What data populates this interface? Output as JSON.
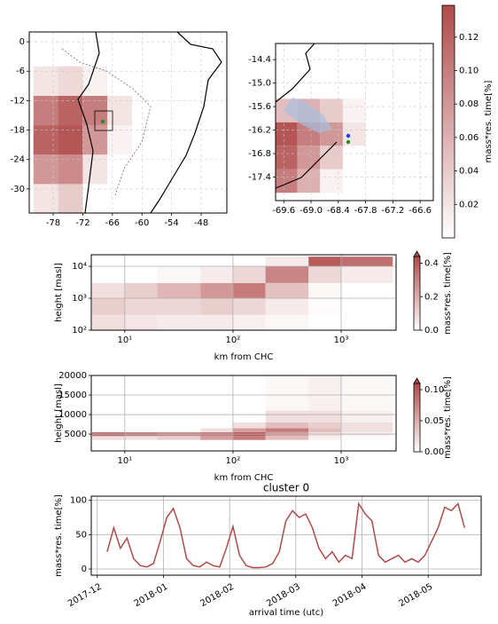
{
  "chart_data": [
    {
      "type": "map_heatmap",
      "color": "#b04a4a",
      "xlim": [
        -82.85,
        -42.8
      ],
      "ylim": [
        -34.9,
        2
      ],
      "xticks": [
        -78,
        -72,
        -66,
        -60,
        -54,
        -48
      ],
      "yticks": [
        0,
        -6,
        -12,
        -18,
        -24,
        -30
      ],
      "x_bins": [
        -82,
        -77,
        -72,
        -67,
        -62
      ],
      "y_bins": [
        -35,
        -29,
        -23,
        -17,
        -11,
        -5
      ],
      "values": [
        [
          0.02,
          0.04,
          0,
          0
        ],
        [
          0.08,
          0.09,
          0.02,
          0
        ],
        [
          0.12,
          0.13,
          0.08,
          0.01
        ],
        [
          0.1,
          0.12,
          0.1,
          0.02
        ],
        [
          0.02,
          0.03,
          0.01,
          0
        ]
      ]
    },
    {
      "type": "map_heatmap",
      "color": "#b04a4a",
      "xlim": [
        -69.78,
        -66.31
      ],
      "ylim": [
        -18.0,
        -13.99
      ],
      "xticks": [
        -69.6,
        {
          "value": -69,
          "label": "-69.0"
        },
        -68.4,
        -67.8,
        -67.2,
        -66.6
      ],
      "yticks": [
        -14.4,
        {
          "value": -15,
          "label": "-15.0"
        },
        -15.6,
        -16.2,
        -16.8,
        -17.4
      ],
      "x_bins": [
        -69.78,
        -69.3,
        -68.8,
        -68.3,
        -67.8
      ],
      "y_bins": [
        -17.8,
        -17.2,
        -16.6,
        -16,
        -15.4,
        -14.8
      ],
      "values": [
        [
          0.1,
          0.06,
          0.01,
          0
        ],
        [
          0.12,
          0.08,
          0.04,
          0
        ],
        [
          0.13,
          0.1,
          0.08,
          0.02
        ],
        [
          0.05,
          0.06,
          0.04,
          0.01
        ],
        [
          0,
          0,
          0,
          0
        ]
      ],
      "colorbar": {
        "label": "mass*res. time[%]",
        "lim": [
          0,
          0.139
        ],
        "ticks": [
          0.02,
          0.04,
          0.06,
          0.08,
          {
            "value": 0.1,
            "label": "0.10"
          },
          0.12
        ]
      }
    },
    {
      "type": "heatmap",
      "color": "#b04a4a",
      "xlog": true,
      "ylog": true,
      "grid": true,
      "xlabel": "km from CHC",
      "ylabel": "height [masl]",
      "xlim": [
        4.9,
        3220
      ],
      "ylim": [
        100,
        23000
      ],
      "xticks": [
        {
          "value": 10,
          "label": "10¹"
        },
        {
          "value": 100,
          "label": "10²"
        },
        {
          "value": 1000,
          "label": "10³"
        }
      ],
      "yticks": [
        {
          "value": 100,
          "label": "10²"
        },
        {
          "value": 1000,
          "label": "10³"
        },
        {
          "value": 10000,
          "label": "10⁴"
        }
      ],
      "x_bins": [
        5,
        10,
        20,
        50,
        100,
        200,
        500,
        1000,
        3000
      ],
      "y_bins": [
        100,
        300,
        1000,
        3000,
        10000,
        20000
      ],
      "values": [
        [
          0.08,
          0.06,
          0.05,
          0.05,
          0.04,
          0.02,
          0,
          0
        ],
        [
          0.12,
          0.1,
          0.1,
          0.12,
          0.1,
          0.05,
          0.01,
          0
        ],
        [
          0.08,
          0.12,
          0.18,
          0.25,
          0.32,
          0.15,
          0.02,
          0
        ],
        [
          0,
          0,
          0.02,
          0.05,
          0.1,
          0.3,
          0.1,
          0.05
        ],
        [
          0,
          0,
          0,
          0,
          0,
          0.05,
          0.4,
          0.35
        ]
      ],
      "colorbar": {
        "label": "mass*res. time[%]",
        "lim": [
          0,
          0.44
        ],
        "ticks": [
          {
            "value": 0,
            "label": "0.0"
          },
          0.2,
          0.4
        ]
      }
    },
    {
      "type": "heatmap",
      "color": "#b04a4a",
      "xlog": true,
      "ylog": false,
      "grid": true,
      "xlabel": "km from CHC",
      "ylabel": "height [masl]",
      "xlim": [
        4.9,
        3220
      ],
      "ylim": [
        700,
        20000
      ],
      "xticks": [
        {
          "value": 10,
          "label": "10¹"
        },
        {
          "value": 100,
          "label": "10²"
        },
        {
          "value": 1000,
          "label": "10³"
        }
      ],
      "yticks": [
        5000,
        10000,
        15000,
        20000
      ],
      "x_bins": [
        5,
        10,
        20,
        50,
        100,
        200,
        500,
        1000,
        3000
      ],
      "y_bins": [
        3500,
        4500,
        5500,
        6500,
        8000,
        11000,
        20000
      ],
      "values": [
        [
          0.02,
          0.02,
          0.03,
          0.06,
          0.08,
          0.04,
          0.01,
          0
        ],
        [
          0.09,
          0.08,
          0.07,
          0.08,
          0.1,
          0.06,
          0.02,
          0.01
        ],
        [
          0,
          0,
          0,
          0.02,
          0.06,
          0.08,
          0.04,
          0.02
        ],
        [
          0,
          0,
          0,
          0,
          0.02,
          0.04,
          0.03,
          0.02
        ],
        [
          0,
          0,
          0,
          0,
          0,
          0.02,
          0.02,
          0.01
        ],
        [
          0,
          0,
          0,
          0,
          0,
          0.005,
          0.01,
          0.005
        ]
      ],
      "colorbar": {
        "label": "mass*res. time[%]",
        "lim": [
          0,
          0.11
        ],
        "ticks": [
          {
            "value": 0,
            "label": "0.00"
          },
          0.05,
          {
            "value": 0.1,
            "label": "0.10"
          }
        ]
      }
    },
    {
      "type": "line",
      "color": "#b04a4a",
      "grid": true,
      "title": "cluster 0",
      "xlabel": "arrival time (utc)",
      "ylabel": "mass*res. time[%]",
      "xlim": [
        -0.09,
        5.8
      ],
      "ylim": [
        -9,
        106
      ],
      "xticks": [
        {
          "value": 0,
          "label": "2017-12"
        },
        {
          "value": 1,
          "label": "2018-01"
        },
        {
          "value": 2,
          "label": "2018-02"
        },
        {
          "value": 3,
          "label": "2018-03"
        },
        {
          "value": 4,
          "label": "2018-04"
        },
        {
          "value": 5,
          "label": "2018-05"
        }
      ],
      "yticks": [
        0,
        50,
        100
      ],
      "x": [
        0.15,
        0.25,
        0.35,
        0.45,
        0.55,
        0.65,
        0.75,
        0.85,
        0.95,
        1.05,
        1.15,
        1.25,
        1.35,
        1.45,
        1.55,
        1.65,
        1.75,
        1.85,
        1.95,
        2.05,
        2.15,
        2.25,
        2.35,
        2.45,
        2.55,
        2.65,
        2.75,
        2.85,
        2.95,
        3.05,
        3.15,
        3.25,
        3.35,
        3.45,
        3.55,
        3.65,
        3.75,
        3.85,
        3.95,
        4.05,
        4.15,
        4.25,
        4.35,
        4.45,
        4.55,
        4.65,
        4.75,
        4.85,
        4.95,
        5.05,
        5.15,
        5.25,
        5.35,
        5.45,
        5.55
      ],
      "values": [
        25,
        60,
        30,
        45,
        15,
        5,
        3,
        8,
        40,
        75,
        88,
        60,
        15,
        5,
        3,
        10,
        5,
        3,
        30,
        62,
        20,
        5,
        2,
        2,
        3,
        8,
        25,
        70,
        85,
        75,
        80,
        60,
        30,
        15,
        25,
        10,
        20,
        15,
        95,
        80,
        70,
        20,
        10,
        15,
        20,
        10,
        15,
        10,
        20,
        40,
        60,
        90,
        85,
        95,
        60
      ]
    }
  ]
}
